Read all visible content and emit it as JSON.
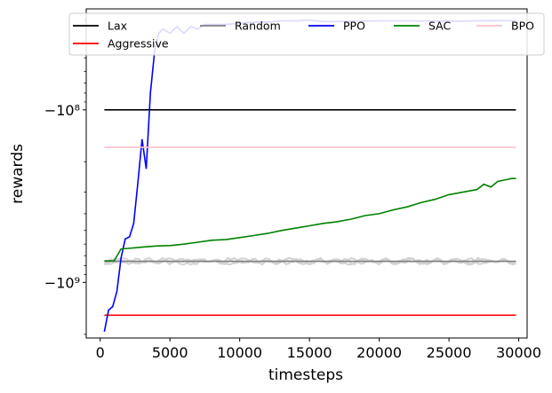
{
  "chart_data": {
    "type": "line",
    "xlabel": "timesteps",
    "ylabel": "rewards",
    "xlim": [
      -1000,
      30600
    ],
    "x_ticks": [
      0,
      5000,
      10000,
      15000,
      20000,
      25000,
      30000
    ],
    "x_tick_labels": [
      "0",
      "5000",
      "10000",
      "15000",
      "20000",
      "25000",
      "30000"
    ],
    "y_scale": "symlog (negative)",
    "y_ticks": [
      -100000000,
      -1000000000
    ],
    "y_tick_labels": [
      "−10⁸",
      "−10⁹"
    ],
    "ylim": [
      -26000000,
      -2100000000
    ],
    "grid": false,
    "legend_position": "top, 5 columns",
    "series": [
      {
        "name": "Lax",
        "color": "#000000",
        "x": [
          300,
          29800
        ],
        "y": [
          -100000000,
          -100000000
        ]
      },
      {
        "name": "Aggressive",
        "color": "#ff0000",
        "x": [
          300,
          29800
        ],
        "y": [
          -1550000000,
          -1550000000
        ]
      },
      {
        "name": "Random",
        "color": "#808080",
        "x": [
          300,
          2000,
          4000,
          6000,
          8000,
          10000,
          12000,
          14000,
          16000,
          18000,
          20000,
          22000,
          24000,
          26000,
          28000,
          29800
        ],
        "y": [
          -755000000,
          -755000000,
          -755000000,
          -755000000,
          -755000000,
          -755000000,
          -755000000,
          -755000000,
          -755000000,
          -755000000,
          -755000000,
          -755000000,
          -755000000,
          -755000000,
          -755000000,
          -755000000
        ]
      },
      {
        "name": "PPO",
        "color": "#0000ff",
        "x": [
          300,
          600,
          900,
          1200,
          1500,
          1800,
          2100,
          2400,
          2700,
          3000,
          3300,
          3600,
          3900,
          4200,
          4500,
          5000,
          5500,
          6000,
          6500,
          7000,
          7500,
          8000,
          9000,
          10000,
          11000,
          12000,
          13000,
          14000,
          15000,
          16000,
          17000,
          18000,
          20000,
          22000,
          24000,
          26000,
          28000,
          29800
        ],
        "y": [
          -1930000000,
          -1450000000,
          -1380000000,
          -1130000000,
          -720000000,
          -560000000,
          -545000000,
          -455000000,
          -265000000,
          -148000000,
          -220000000,
          -80000000,
          -46000000,
          -36000000,
          -34000000,
          -36000000,
          -33000000,
          -36000000,
          -33000000,
          -34000000,
          -32000000,
          -32000000,
          -32000000,
          -31500000,
          -31000000,
          -31000000,
          -30500000,
          -30500000,
          -30200000,
          -30800000,
          -30800000,
          -30700000,
          -30500000,
          -30500000,
          -30600000,
          -30600000,
          -30400000,
          -30500000
        ]
      },
      {
        "name": "SAC",
        "color": "#008000",
        "x": [
          300,
          1000,
          1500,
          2000,
          3000,
          4000,
          5000,
          6000,
          7000,
          8000,
          9000,
          10000,
          11000,
          12000,
          13000,
          14000,
          15000,
          16000,
          17000,
          18000,
          19000,
          20000,
          21000,
          22000,
          23000,
          24000,
          25000,
          26000,
          27000,
          27500,
          28000,
          28500,
          29000,
          29500,
          29800
        ],
        "y": [
          -750000000,
          -750000000,
          -640000000,
          -635000000,
          -625000000,
          -615000000,
          -612000000,
          -600000000,
          -585000000,
          -570000000,
          -565000000,
          -550000000,
          -535000000,
          -520000000,
          -500000000,
          -485000000,
          -470000000,
          -455000000,
          -445000000,
          -430000000,
          -410000000,
          -400000000,
          -380000000,
          -365000000,
          -345000000,
          -330000000,
          -310000000,
          -300000000,
          -290000000,
          -270000000,
          -280000000,
          -260000000,
          -255000000,
          -250000000,
          -250000000
        ]
      },
      {
        "name": "BPO",
        "color": "#ffc0cb",
        "x": [
          300,
          29800
        ],
        "y": [
          -165000000,
          -165000000
        ]
      }
    ]
  }
}
